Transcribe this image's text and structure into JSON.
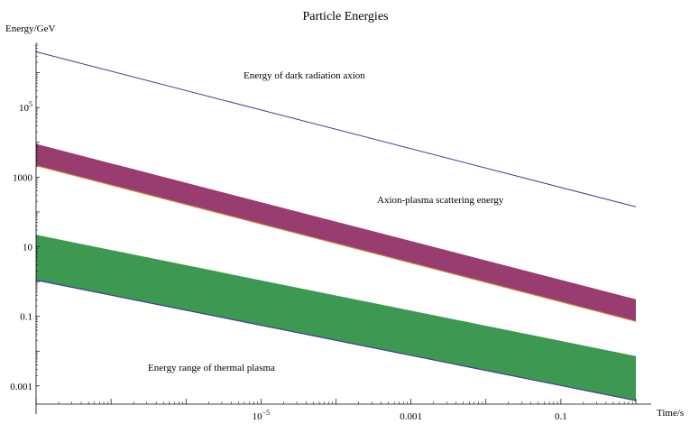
{
  "chart_data": {
    "type": "area",
    "title": "Particle Energies",
    "xlabel": "Time/s",
    "ylabel": "Energy/GeV",
    "x_scale": "log",
    "y_scale": "log",
    "xlim": [
      1e-08,
      1
    ],
    "ylim": [
      0.0003,
      7000000
    ],
    "x_ticks": [
      {
        "value": 1e-05,
        "base": "10",
        "exp": "−5"
      },
      {
        "value": 0.001,
        "text": "0.001"
      },
      {
        "value": 0.1,
        "text": "0.1"
      }
    ],
    "y_ticks": [
      {
        "value": 0.001,
        "text": "0.001"
      },
      {
        "value": 0.1,
        "text": "0.1"
      },
      {
        "value": 10,
        "text": "10"
      },
      {
        "value": 1000,
        "text": "1000"
      },
      {
        "value": 100000,
        "base": "10",
        "exp": "5"
      }
    ],
    "grid": false,
    "series": [
      {
        "label": "Energy of dark radiation axion",
        "kind": "line",
        "color": "#3f3d99",
        "x": [
          1e-08,
          1
        ],
        "y": [
          4000000,
          140
        ]
      },
      {
        "label": "Axion-plasma scattering energy",
        "kind": "band",
        "color": "#993d71",
        "edge_color": "#c88a3a",
        "x": [
          1e-08,
          1
        ],
        "y_low": [
          2150,
          0.072
        ],
        "y_high": [
          9000,
          0.31
        ]
      },
      {
        "label": "Energy range of thermal plasma",
        "kind": "band",
        "color": "#3d9952",
        "edge_color": "#3f3d99",
        "x": [
          1e-08,
          1
        ],
        "y_low": [
          1.1,
          0.00038
        ],
        "y_high": [
          22,
          0.0072
        ]
      }
    ]
  }
}
